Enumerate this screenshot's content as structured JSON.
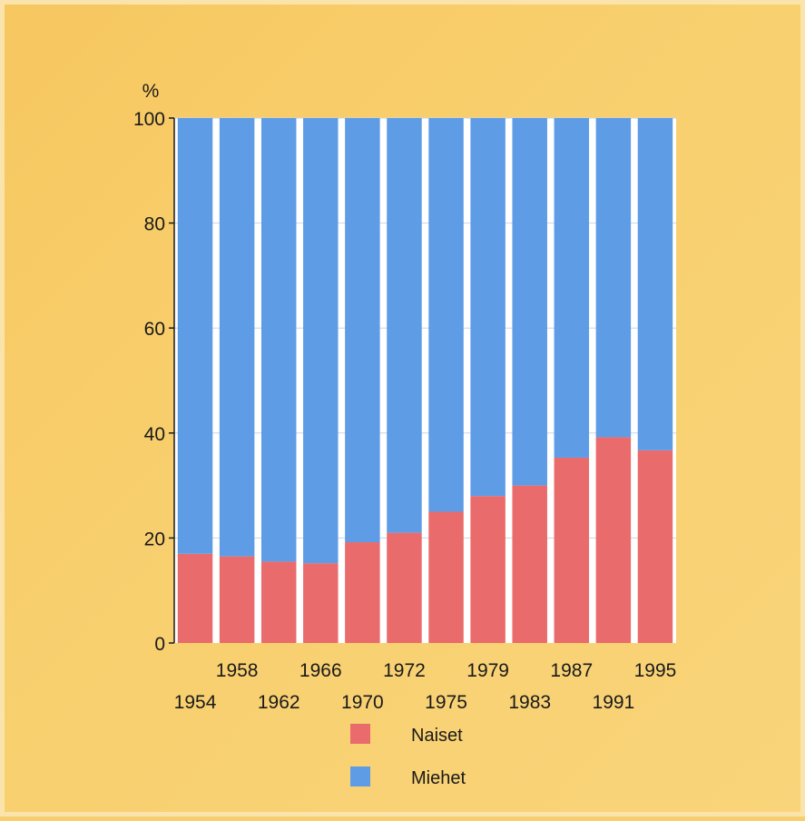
{
  "chart_data": {
    "type": "bar",
    "stacked": true,
    "normalized_percent": true,
    "categories": [
      "1954",
      "1958",
      "1962",
      "1966",
      "1970",
      "1972",
      "1975",
      "1979",
      "1983",
      "1987",
      "1991",
      "1995"
    ],
    "series": [
      {
        "name": "Naiset",
        "color": "#ea6b6b",
        "values": [
          17,
          16.5,
          15.5,
          15.2,
          19.2,
          21,
          25,
          28,
          30,
          35.3,
          39.2,
          36.7
        ]
      },
      {
        "name": "Miehet",
        "color": "#5e9ce6",
        "values": [
          83,
          83.5,
          84.5,
          84.8,
          80.8,
          79,
          75,
          72,
          70,
          64.7,
          60.8,
          63.3
        ]
      }
    ],
    "ylabel": "%",
    "ylim": [
      0,
      100
    ],
    "yticks": [
      "0",
      "20",
      "40",
      "60",
      "80",
      "100"
    ],
    "grid": true,
    "legend_placement": "bottom",
    "colors": {
      "background": "#f8cf6e",
      "plot_background": "#ffffff",
      "axis": "#1a1a1a"
    }
  }
}
